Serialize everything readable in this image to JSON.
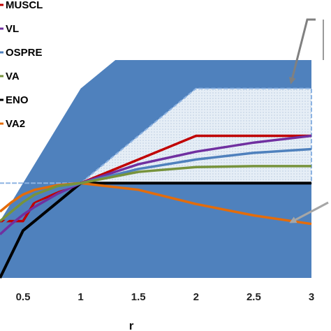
{
  "chart_data": {
    "type": "line",
    "xlabel": "r",
    "xlim": [
      0.3,
      3.0
    ],
    "ylim": [
      0.0,
      2.3
    ],
    "x_ticks": [
      "0.5",
      "1",
      "1.5",
      "2",
      "2.5",
      "3"
    ],
    "x_tick_values": [
      0.5,
      1.0,
      1.5,
      2.0,
      2.5,
      3.0
    ],
    "grid": false,
    "legend_placement": "top-left",
    "tvd_region": {
      "color": "#4f81bd",
      "vertices": [
        [
          0.3,
          0.0
        ],
        [
          0.3,
          0.6
        ],
        [
          0.5,
          1.0
        ],
        [
          1.0,
          2.0
        ],
        [
          1.3,
          2.3
        ],
        [
          3.0,
          2.3
        ],
        [
          3.0,
          0.0
        ]
      ]
    },
    "second_order_region": {
      "fill": "#e6eef6",
      "border": "#8db3e2",
      "vertices": [
        [
          0.3,
          1.0
        ],
        [
          0.5,
          1.0
        ],
        [
          1.0,
          1.0
        ],
        [
          2.0,
          2.0
        ],
        [
          3.0,
          2.0
        ],
        [
          3.0,
          1.0
        ]
      ]
    },
    "series": [
      {
        "name": "MUSCL",
        "color": "#c00000",
        "x": [
          0.3,
          0.5,
          0.6,
          1.0,
          2.0,
          3.0
        ],
        "y": [
          0.6,
          0.6,
          0.8,
          1.0,
          1.5,
          1.5
        ]
      },
      {
        "name": "VL",
        "color": "#7030a0",
        "x": [
          0.3,
          0.4,
          0.5,
          0.6,
          0.8,
          1.0,
          1.5,
          2.0,
          2.5,
          3.0
        ],
        "y": [
          0.46,
          0.57,
          0.667,
          0.75,
          0.889,
          1.0,
          1.2,
          1.333,
          1.429,
          1.5
        ]
      },
      {
        "name": "OSPRE",
        "color": "#4f81bd",
        "x": [
          0.3,
          0.4,
          0.5,
          0.6,
          0.8,
          1.0,
          1.5,
          2.0,
          2.5,
          3.0
        ],
        "y": [
          0.55,
          0.65,
          0.75,
          0.82,
          0.93,
          1.0,
          1.15,
          1.25,
          1.32,
          1.36
        ]
      },
      {
        "name": "VA",
        "color": "#77933c",
        "x": [
          0.3,
          0.4,
          0.5,
          0.6,
          0.8,
          1.0,
          1.5,
          2.0,
          2.5,
          3.0
        ],
        "y": [
          0.6,
          0.7,
          0.8,
          0.88,
          0.97,
          1.0,
          1.12,
          1.17,
          1.18,
          1.18
        ]
      },
      {
        "name": "ENO",
        "color": "#000000",
        "x": [
          0.3,
          0.5,
          1.0,
          3.0
        ],
        "y": [
          0.0,
          0.5,
          1.0,
          1.0
        ]
      },
      {
        "name": "VA2",
        "color": "#e46c0a",
        "x": [
          0.3,
          0.4,
          0.5,
          0.6,
          0.8,
          1.0,
          1.5,
          2.0,
          2.5,
          3.0
        ],
        "y": [
          0.7,
          0.8,
          0.88,
          0.93,
          0.98,
          1.0,
          0.93,
          0.78,
          0.66,
          0.57
        ]
      }
    ],
    "annotation_arrows": [
      {
        "color": "#808080"
      },
      {
        "color": "#a6a6a6"
      }
    ]
  }
}
